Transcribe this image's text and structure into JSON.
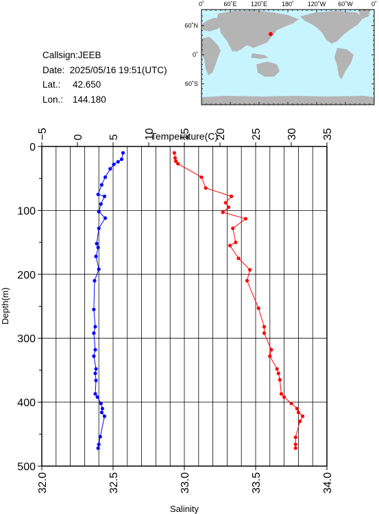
{
  "station": {
    "callsign_label": "Callsign:",
    "callsign": "JEEB",
    "date_label": "Date:",
    "date": "2025/05/16 19:51(UTC)",
    "lat_label": "Lat.:",
    "lat": "42.650",
    "lon_label": "Lon.:",
    "lon": "144.180"
  },
  "map": {
    "top_ticks": [
      "0˚",
      "60˚E",
      "120˚E",
      "180˚",
      "120˚W",
      "60˚W",
      "0˚"
    ],
    "lat_ticks": [
      "60˚N",
      "0˚",
      "60˚S"
    ],
    "ocean_color": "#c8f4ff",
    "land_color": "#b4b4b4",
    "marker_color": "#ff0000",
    "marker": {
      "lon": 144.18,
      "lat": 42.65
    }
  },
  "chart_data": {
    "type": "line",
    "title": "",
    "ylabel": "Depth(m)",
    "ylim": [
      0,
      500
    ],
    "y_inverted": true,
    "yticks": [
      "0",
      "100",
      "200",
      "300",
      "400",
      "500"
    ],
    "top_axis": {
      "label": "Temperature(C)",
      "range": [
        -5,
        35
      ],
      "ticks": [
        "−5",
        "0",
        "5",
        "10",
        "15",
        "20",
        "25",
        "30",
        "35"
      ]
    },
    "bottom_axis": {
      "label": "Salinity",
      "range": [
        32.0,
        34.0
      ],
      "ticks": [
        "32.0",
        "32.5",
        "33.0",
        "33.5",
        "34.0"
      ]
    },
    "grid": true,
    "series": [
      {
        "axis": "top",
        "color": "#0000ff",
        "points": [
          [
            6.4,
            10
          ],
          [
            6.2,
            20
          ],
          [
            5.7,
            24
          ],
          [
            5.1,
            28
          ],
          [
            4.6,
            35
          ],
          [
            3.9,
            48
          ],
          [
            3.4,
            60
          ],
          [
            2.9,
            75
          ],
          [
            3.8,
            78
          ],
          [
            3.3,
            90
          ],
          [
            3.0,
            102
          ],
          [
            3.9,
            112
          ],
          [
            3.0,
            128
          ],
          [
            2.7,
            152
          ],
          [
            2.9,
            158
          ],
          [
            2.6,
            172
          ],
          [
            3.0,
            192
          ],
          [
            2.4,
            210
          ],
          [
            2.3,
            255
          ],
          [
            2.5,
            282
          ],
          [
            2.3,
            292
          ],
          [
            2.5,
            318
          ],
          [
            2.3,
            328
          ],
          [
            2.6,
            348
          ],
          [
            2.5,
            355
          ],
          [
            2.6,
            366
          ],
          [
            2.5,
            387
          ],
          [
            2.8,
            392
          ],
          [
            3.3,
            402
          ],
          [
            3.5,
            410
          ],
          [
            3.4,
            416
          ],
          [
            3.8,
            422
          ],
          [
            3.2,
            454
          ],
          [
            3.0,
            466
          ],
          [
            2.9,
            472
          ]
        ]
      },
      {
        "axis": "bottom",
        "color": "#ff0000",
        "points": [
          [
            32.93,
            10
          ],
          [
            32.935,
            18
          ],
          [
            32.94,
            23
          ],
          [
            32.955,
            27
          ],
          [
            33.12,
            48
          ],
          [
            33.15,
            65
          ],
          [
            33.33,
            78
          ],
          [
            33.29,
            88
          ],
          [
            33.31,
            95
          ],
          [
            33.27,
            103
          ],
          [
            33.43,
            113
          ],
          [
            33.34,
            128
          ],
          [
            33.36,
            150
          ],
          [
            33.32,
            155
          ],
          [
            33.38,
            175
          ],
          [
            33.46,
            193
          ],
          [
            33.44,
            210
          ],
          [
            33.52,
            253
          ],
          [
            33.56,
            282
          ],
          [
            33.56,
            292
          ],
          [
            33.61,
            318
          ],
          [
            33.6,
            328
          ],
          [
            33.65,
            348
          ],
          [
            33.66,
            355
          ],
          [
            33.67,
            365
          ],
          [
            33.68,
            387
          ],
          [
            33.7,
            392
          ],
          [
            33.75,
            402
          ],
          [
            33.79,
            410
          ],
          [
            33.8,
            416
          ],
          [
            33.83,
            422
          ],
          [
            33.81,
            430
          ],
          [
            33.78,
            455
          ],
          [
            33.78,
            466
          ],
          [
            33.78,
            472
          ]
        ]
      }
    ]
  }
}
